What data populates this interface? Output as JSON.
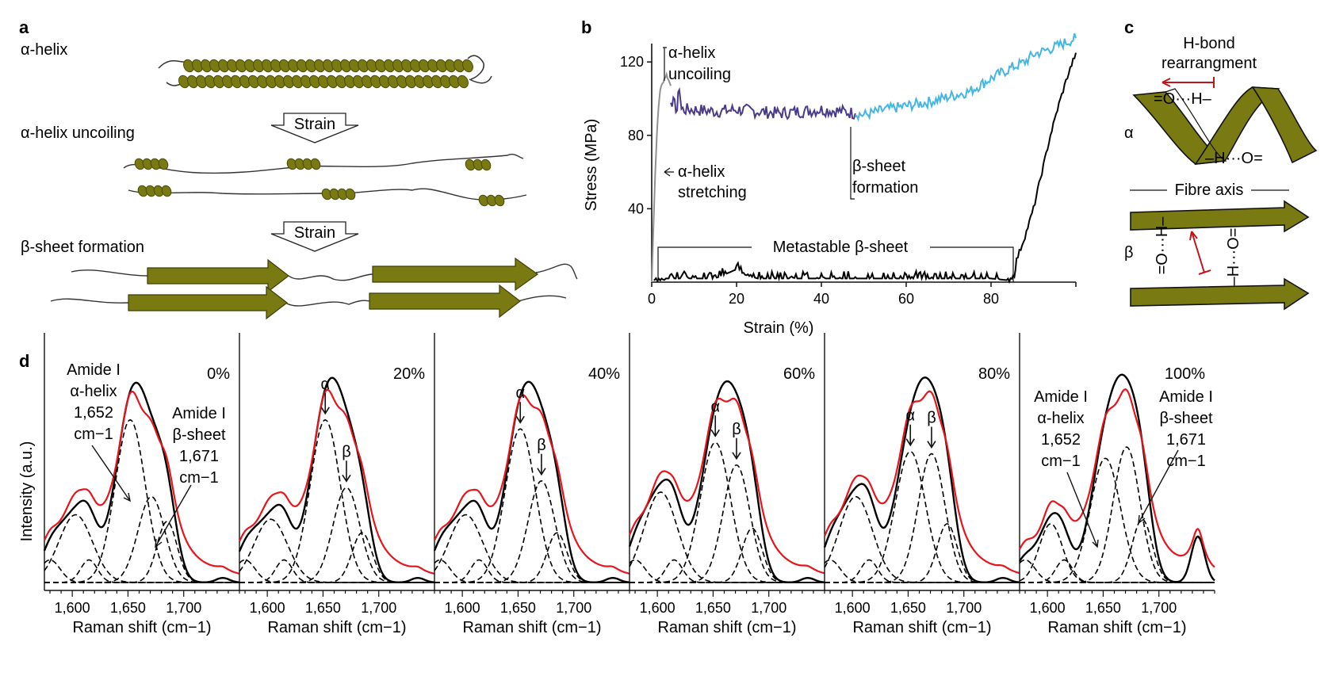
{
  "panels": {
    "a": "a",
    "b": "b",
    "c": "c",
    "d": "d"
  },
  "panel_a": {
    "alpha_helix": "α-helix",
    "uncoiling": "α-helix uncoiling",
    "beta_formation": "β-sheet formation",
    "strain1": "Strain",
    "strain2": "Strain",
    "colors": {
      "helix": "#7a7a12",
      "helix_dark": "#4a4a08"
    }
  },
  "panel_c": {
    "title1": "H-bond",
    "title2": "rearrangment",
    "alpha_sym": "α",
    "beta_sym": "β",
    "fibre_axis": "Fibre axis",
    "oh1": "=O···H–",
    "oh2": "–H···O=",
    "vb1": "=O···H–",
    "vb2": "–H···O="
  },
  "chart_data": [
    {
      "type": "line",
      "panel": "b",
      "xlabel": "Strain (%)",
      "ylabel": "Stress (MPa)",
      "xlim": [
        0,
        100
      ],
      "ylim": [
        0,
        130
      ],
      "xticks": [
        "0",
        "20",
        "40",
        "60",
        "80"
      ],
      "yticks": [
        "40",
        "80",
        "120"
      ],
      "annotations": {
        "uncoil1": "α-helix",
        "uncoil2": "uncoiling",
        "stretch1": "α-helix",
        "stretch2": "stretching",
        "beta1": "β-sheet",
        "beta2": "formation",
        "meta": "Metastable β-sheet"
      },
      "series": [
        {
          "name": "α-helix stretching/uncoiling",
          "color": "#909090",
          "points": [
            [
              0,
              0
            ],
            [
              0.4,
              30
            ],
            [
              0.8,
              58
            ],
            [
              1.2,
              80
            ],
            [
              1.6,
              95
            ],
            [
              2,
              105
            ],
            [
              2.5,
              108
            ],
            [
              3,
              111
            ],
            [
              3.5,
              113
            ],
            [
              4,
              110
            ],
            [
              4.5,
              107
            ]
          ]
        },
        {
          "name": "α-helix to β-sheet plateau",
          "color": "#4a3a8a",
          "points": [
            [
              4.5,
              100
            ],
            [
              6,
              94
            ],
            [
              6.5,
              107
            ],
            [
              7,
              94
            ],
            [
              10,
              94
            ],
            [
              15,
              93
            ],
            [
              20,
              94
            ],
            [
              25,
              93
            ],
            [
              30,
              92
            ],
            [
              35,
              93
            ],
            [
              40,
              94
            ],
            [
              45,
              93
            ],
            [
              48,
              92
            ]
          ]
        },
        {
          "name": "β-sheet formation",
          "color": "#44b6e4",
          "points": [
            [
              48,
              92
            ],
            [
              50,
              91
            ],
            [
              55,
              94
            ],
            [
              60,
              96
            ],
            [
              65,
              98
            ],
            [
              70,
              101
            ],
            [
              75,
              104
            ],
            [
              80,
              111
            ],
            [
              85,
              117
            ],
            [
              88,
              120
            ],
            [
              90,
              124
            ],
            [
              95,
              128
            ],
            [
              100,
              133
            ]
          ]
        },
        {
          "name": "Metastable β-sheet",
          "color": "#000000",
          "points": [
            [
              0.5,
              0
            ],
            [
              1,
              2
            ],
            [
              5,
              2
            ],
            [
              10,
              2
            ],
            [
              15,
              2
            ],
            [
              20,
              7
            ],
            [
              22,
              4
            ],
            [
              25,
              2
            ],
            [
              30,
              2
            ],
            [
              40,
              2
            ],
            [
              50,
              2
            ],
            [
              60,
              2
            ],
            [
              70,
              2
            ],
            [
              80,
              2
            ],
            [
              84,
              1
            ],
            [
              85.5,
              4
            ],
            [
              86,
              12
            ],
            [
              88,
              25
            ],
            [
              90,
              40
            ],
            [
              92,
              60
            ],
            [
              94,
              80
            ],
            [
              96,
              97
            ],
            [
              98,
              112
            ],
            [
              100,
              125
            ]
          ]
        }
      ]
    },
    {
      "type": "line",
      "panel": "d",
      "ylabel": "Intensity (a.u.)",
      "xlabel": "Raman shift (cm−1)",
      "xlim": [
        1575,
        1750
      ],
      "xticks": [
        "1,600",
        "1,650",
        "1,700"
      ],
      "colors": {
        "measured": "#000000",
        "fit": "#e8141b",
        "components": "#000000"
      },
      "peak_labels": {
        "alpha": "α",
        "beta": "β"
      },
      "callouts": {
        "amide": "Amide I",
        "alpha_helix": "α-helix",
        "beta_sheet": "β-sheet",
        "wn1": "1,652",
        "wn2": "1,671",
        "unit": "cm−1"
      },
      "subplots": [
        {
          "label": "0%",
          "peaks": [
            [
              1580,
              0.1,
              12
            ],
            [
              1603,
              0.3,
              20
            ],
            [
              1615,
              0.1,
              10
            ],
            [
              1652,
              0.72,
              18
            ],
            [
              1671,
              0.38,
              16
            ],
            [
              1685,
              0.27,
              12
            ],
            [
              1735,
              0.02,
              8
            ]
          ]
        },
        {
          "label": "20%",
          "peaks": [
            [
              1580,
              0.1,
              12
            ],
            [
              1603,
              0.28,
              20
            ],
            [
              1615,
              0.1,
              10
            ],
            [
              1652,
              0.72,
              18
            ],
            [
              1671,
              0.42,
              16
            ],
            [
              1685,
              0.22,
              12
            ],
            [
              1735,
              0.02,
              8
            ]
          ]
        },
        {
          "label": "40%",
          "peaks": [
            [
              1580,
              0.1,
              12
            ],
            [
              1603,
              0.3,
              20
            ],
            [
              1615,
              0.1,
              10
            ],
            [
              1652,
              0.68,
              18
            ],
            [
              1671,
              0.45,
              16
            ],
            [
              1685,
              0.22,
              12
            ],
            [
              1735,
              0.02,
              8
            ]
          ]
        },
        {
          "label": "60%",
          "peaks": [
            [
              1580,
              0.1,
              12
            ],
            [
              1603,
              0.4,
              20
            ],
            [
              1615,
              0.1,
              10
            ],
            [
              1652,
              0.62,
              18
            ],
            [
              1671,
              0.52,
              16
            ],
            [
              1685,
              0.24,
              12
            ],
            [
              1735,
              0.02,
              8
            ]
          ]
        },
        {
          "label": "80%",
          "peaks": [
            [
              1580,
              0.1,
              12
            ],
            [
              1603,
              0.38,
              20
            ],
            [
              1615,
              0.1,
              10
            ],
            [
              1652,
              0.58,
              18
            ],
            [
              1671,
              0.57,
              16
            ],
            [
              1685,
              0.26,
              12
            ],
            [
              1735,
              0.02,
              8
            ]
          ]
        },
        {
          "label": "100%",
          "peaks": [
            [
              1580,
              0.1,
              12
            ],
            [
              1603,
              0.26,
              14
            ],
            [
              1615,
              0.1,
              10
            ],
            [
              1652,
              0.55,
              18
            ],
            [
              1671,
              0.6,
              16
            ],
            [
              1685,
              0.28,
              12
            ],
            [
              1735,
              0.2,
              8
            ]
          ]
        }
      ]
    }
  ]
}
